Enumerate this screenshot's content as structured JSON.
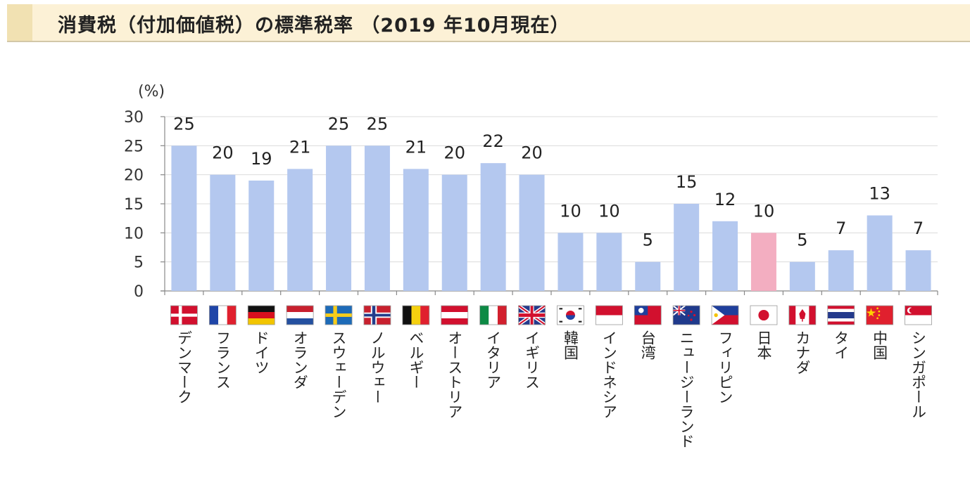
{
  "header": {
    "title": "消費税（付加価値税）の標準税率 （2019 年10月現在）"
  },
  "colors": {
    "bar": "#b4c8ef",
    "highlight": "#f3aec1",
    "header_bg": "#fcf1d6"
  },
  "chart_data": {
    "type": "bar",
    "title": "",
    "ylabel": "(%)",
    "ylim": [
      0,
      30
    ],
    "yticks": [
      "0",
      "5",
      "10",
      "15",
      "20",
      "25",
      "30"
    ],
    "categories": [
      "デンマーク",
      "フランス",
      "ドイツ",
      "オランダ",
      "スウェーデン",
      "ノルウェー",
      "ベルギー",
      "オーストリア",
      "イタリア",
      "イギリス",
      "韓国",
      "インドネシア",
      "台湾",
      "ニュージーランド",
      "フィリピン",
      "日本",
      "カナダ",
      "タイ",
      "中国",
      "シンガポール"
    ],
    "values": [
      25,
      20,
      19,
      21,
      25,
      25,
      21,
      20,
      22,
      20,
      10,
      10,
      5,
      15,
      12,
      10,
      5,
      7,
      13,
      7
    ],
    "labels": [
      "25",
      "20",
      "19",
      "21",
      "25",
      "25",
      "21",
      "20",
      "22",
      "20",
      "10",
      "10",
      "5",
      "15",
      "12",
      "10",
      "5",
      "7",
      "13",
      "7"
    ],
    "highlight": "日本",
    "flags": [
      "denmark-flag",
      "france-flag",
      "germany-flag",
      "netherlands-flag",
      "sweden-flag",
      "norway-flag",
      "belgium-flag",
      "austria-flag",
      "italy-flag",
      "uk-flag",
      "korea-flag",
      "indonesia-flag",
      "taiwan-flag",
      "new-zealand-flag",
      "philippines-flag",
      "japan-flag",
      "canada-flag",
      "thailand-flag",
      "china-flag",
      "singapore-flag"
    ],
    "grid": true,
    "legend": "none"
  }
}
